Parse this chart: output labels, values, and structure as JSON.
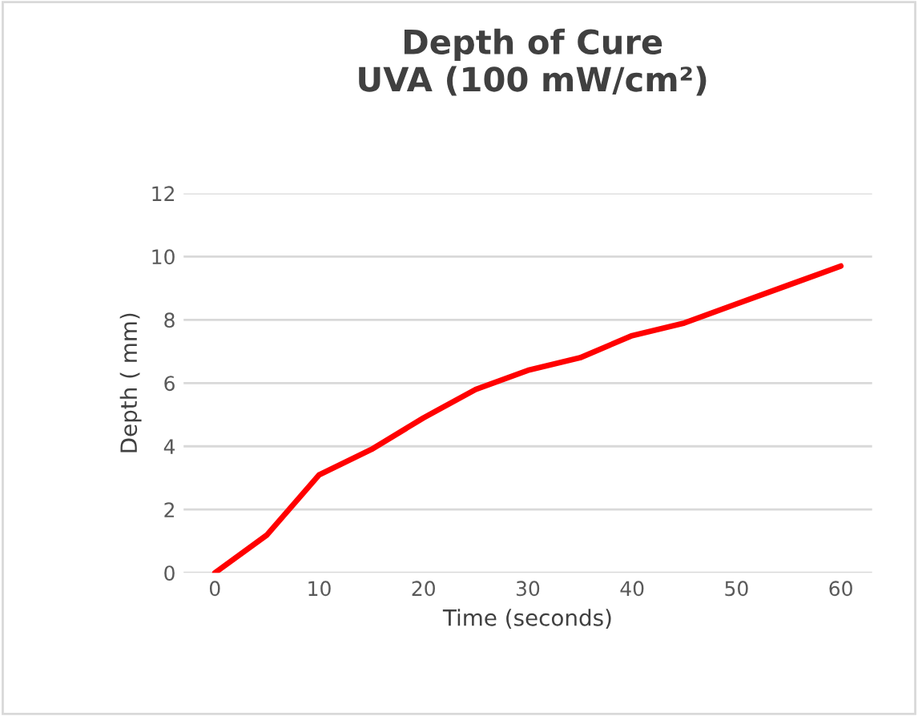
{
  "chart_data": {
    "type": "line",
    "title": "Depth of Cure\nUVA (100 mW/cm²)",
    "xlabel": "Time (seconds)",
    "ylabel": "Depth ( mm)",
    "x": [
      0,
      5,
      10,
      15,
      20,
      25,
      30,
      35,
      40,
      45,
      50,
      55,
      60
    ],
    "series": [
      {
        "color": "#ff0000",
        "values": [
          0,
          1.2,
          3.1,
          3.9,
          4.9,
          5.8,
          6.4,
          6.8,
          7.5,
          7.9,
          8.5,
          9.1,
          9.7
        ]
      }
    ],
    "xlim": [
      -3,
      63
    ],
    "ylim": [
      0,
      12
    ],
    "xticks": [
      0,
      10,
      20,
      30,
      40,
      50,
      60
    ],
    "yticks": [
      0,
      2,
      4,
      6,
      8,
      10,
      12
    ],
    "grid": "y",
    "marker": "none",
    "line_style": "solid"
  }
}
